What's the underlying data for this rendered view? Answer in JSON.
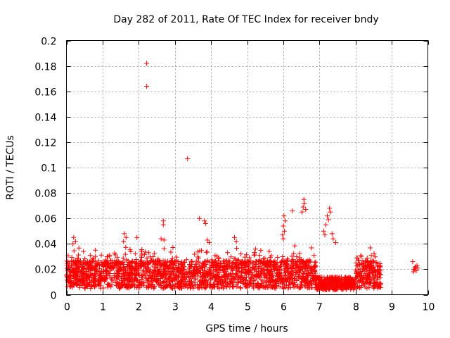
{
  "chart_data": {
    "type": "scatter",
    "title": "Day 282 of 2011, Rate Of TEC Index for receiver bndy",
    "xlabel": "GPS time / hours",
    "ylabel": "ROTI / TECUs",
    "xlim": [
      0,
      10
    ],
    "ylim": [
      0,
      0.2
    ],
    "x_ticks": [
      0,
      1,
      2,
      3,
      4,
      5,
      6,
      7,
      8,
      9,
      10
    ],
    "x_tick_labels": [
      "0",
      "1",
      "2",
      "3",
      "4",
      "5",
      "6",
      "7",
      "8",
      "9",
      "10"
    ],
    "y_ticks": [
      0,
      0.02,
      0.04,
      0.06,
      0.08,
      0.1,
      0.12,
      0.14,
      0.16,
      0.18,
      0.2
    ],
    "y_tick_labels": [
      "0",
      "0.02",
      "0.04",
      "0.06",
      "0.08",
      "0.1",
      "0.12",
      "0.14",
      "0.16",
      "0.18",
      "0.2"
    ],
    "grid": true,
    "marker": "+",
    "color": "#ff0000",
    "series": [
      {
        "name": "ROTI",
        "points": [
          [
            2.22,
            0.182
          ],
          [
            2.22,
            0.164
          ],
          [
            3.35,
            0.107
          ],
          [
            3.68,
            0.06
          ],
          [
            3.82,
            0.058
          ],
          [
            3.85,
            0.056
          ],
          [
            2.68,
            0.058
          ],
          [
            2.68,
            0.055
          ],
          [
            6.57,
            0.075
          ],
          [
            6.58,
            0.072
          ],
          [
            6.55,
            0.069
          ],
          [
            6.52,
            0.065
          ],
          [
            6.62,
            0.067
          ],
          [
            7.28,
            0.068
          ],
          [
            7.3,
            0.065
          ],
          [
            7.22,
            0.062
          ],
          [
            7.25,
            0.059
          ],
          [
            7.18,
            0.055
          ],
          [
            6.25,
            0.066
          ],
          [
            6.02,
            0.062
          ],
          [
            6.05,
            0.058
          ],
          [
            6.0,
            0.054
          ],
          [
            6.03,
            0.05
          ],
          [
            5.98,
            0.047
          ],
          [
            6.0,
            0.044
          ],
          [
            7.12,
            0.05
          ],
          [
            7.15,
            0.047
          ],
          [
            7.35,
            0.048
          ],
          [
            7.38,
            0.044
          ],
          [
            7.45,
            0.041
          ],
          [
            1.6,
            0.048
          ],
          [
            1.65,
            0.045
          ],
          [
            1.58,
            0.042
          ],
          [
            0.2,
            0.045
          ],
          [
            0.25,
            0.042
          ],
          [
            0.18,
            0.04
          ],
          [
            1.95,
            0.045
          ],
          [
            2.62,
            0.044
          ],
          [
            2.7,
            0.043
          ],
          [
            3.9,
            0.043
          ],
          [
            3.95,
            0.041
          ],
          [
            4.65,
            0.045
          ],
          [
            4.7,
            0.042
          ],
          [
            9.58,
            0.026
          ],
          [
            9.62,
            0.02
          ],
          [
            9.66,
            0.022
          ],
          [
            9.7,
            0.023
          ],
          [
            9.6,
            0.018
          ],
          [
            9.64,
            0.021
          ],
          [
            9.68,
            0.019
          ],
          [
            9.72,
            0.021
          ]
        ]
      }
    ]
  }
}
